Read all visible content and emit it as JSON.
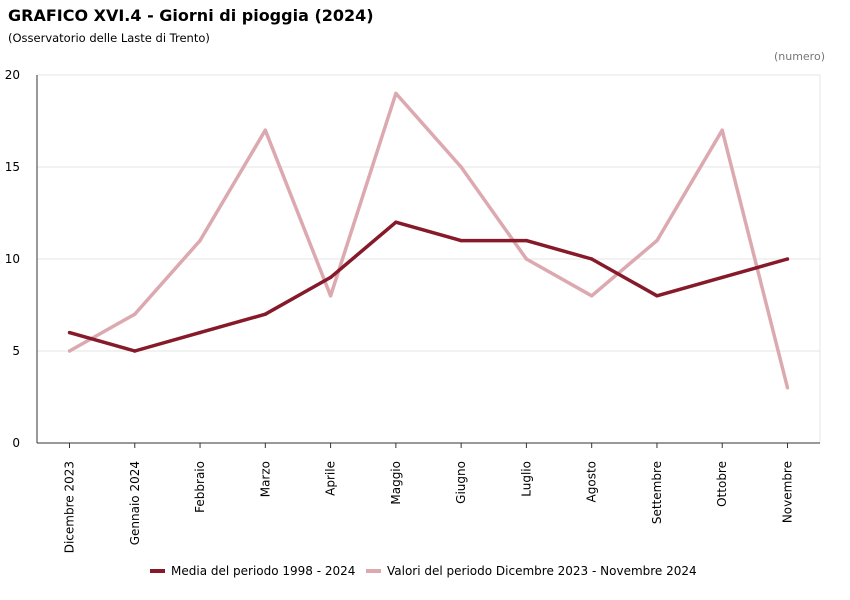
{
  "header": {
    "title": "GRAFICO XVI.4 - Giorni di pioggia (2024)",
    "subtitle": "(Osservatorio delle Laste di Trento)",
    "unit": "(numero)"
  },
  "chart_data": {
    "type": "line",
    "title": "GRAFICO XVI.4 - Giorni di pioggia (2024)",
    "xlabel": "",
    "ylabel": "",
    "ylim": [
      0,
      20
    ],
    "yticks": [
      0,
      5,
      10,
      15,
      20
    ],
    "grid": true,
    "legend_position": "bottom",
    "categories": [
      "Dicembre 2023",
      "Gennaio 2024",
      "Febbraio",
      "Marzo",
      "Aprile",
      "Maggio",
      "Giugno",
      "Luglio",
      "Agosto",
      "Settembre",
      "Ottobre",
      "Novembre"
    ],
    "series": [
      {
        "name": "Media del periodo 1998 - 2024",
        "color": "#861a2a",
        "values": [
          6,
          5,
          6,
          7,
          9,
          12,
          11,
          11,
          10,
          8,
          9,
          10
        ]
      },
      {
        "name": "Valori del periodo Dicembre 2023 - Novembre 2024",
        "color": "#dca9b0",
        "values": [
          5,
          7,
          11,
          17,
          8,
          19,
          15,
          10,
          8,
          11,
          17,
          3
        ]
      }
    ]
  }
}
